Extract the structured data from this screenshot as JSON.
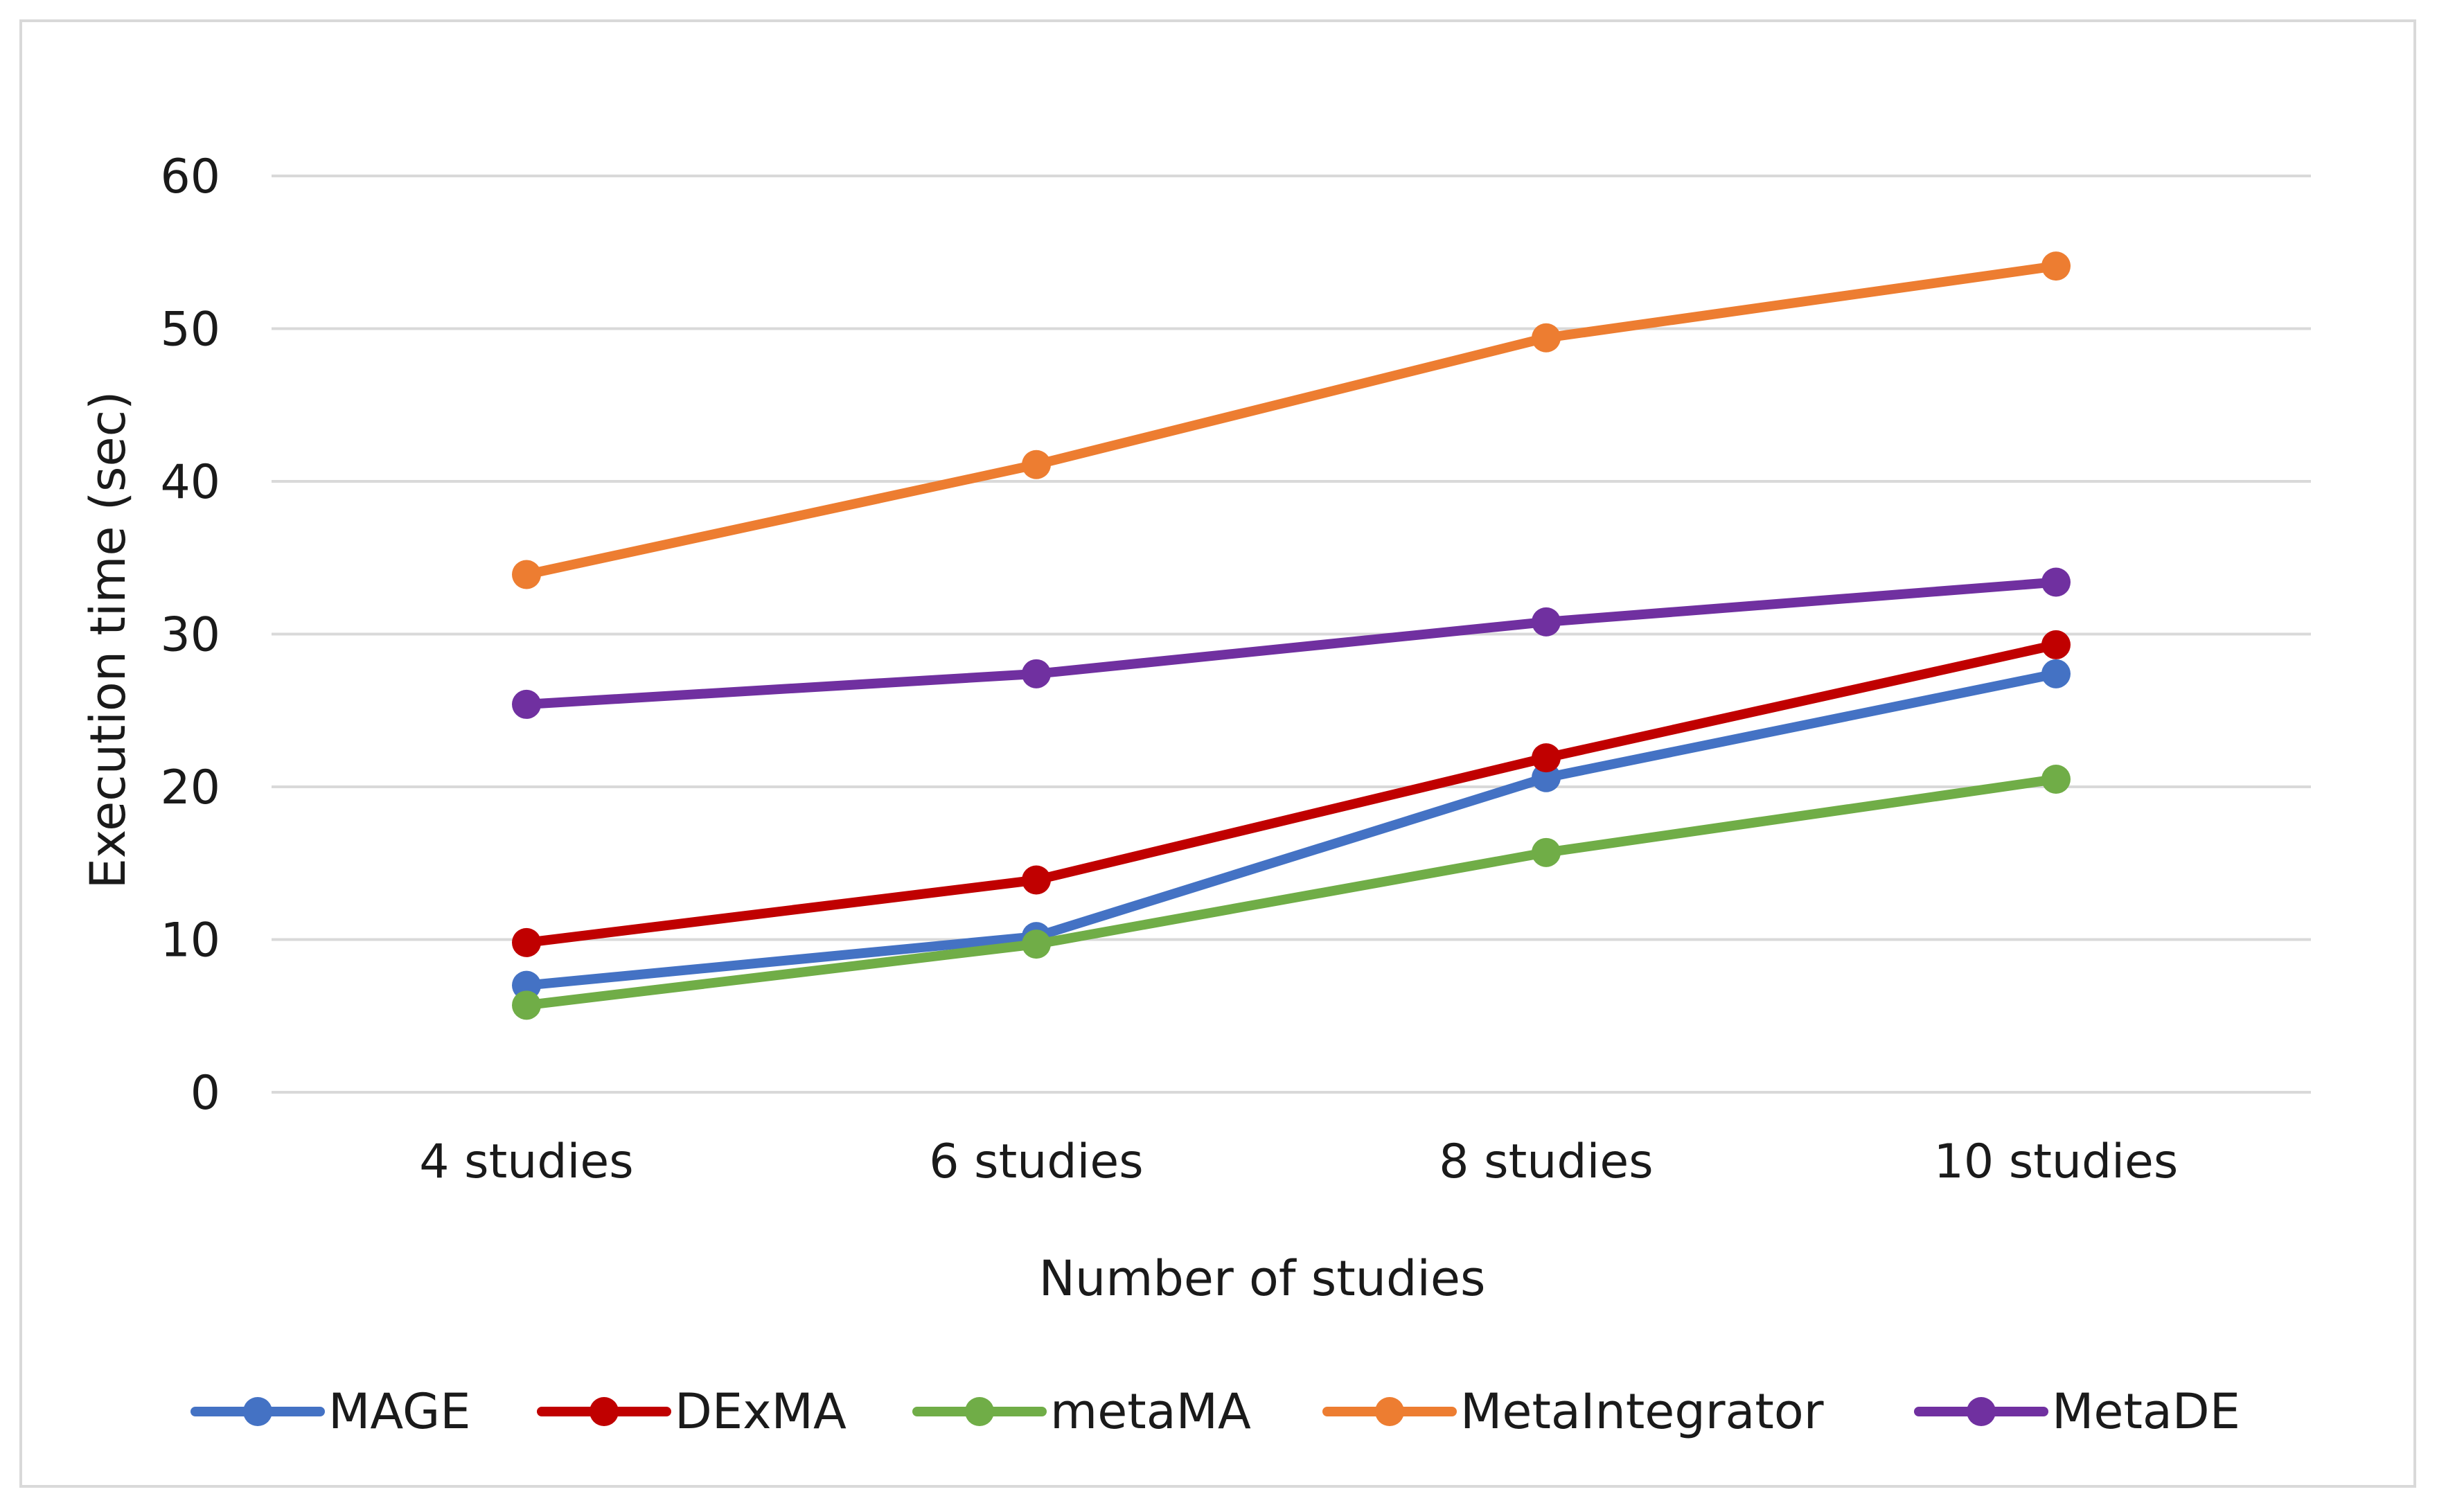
{
  "chart_data": {
    "type": "line",
    "title": "",
    "xlabel": "Number of studies",
    "ylabel": "Execution time (sec)",
    "categories": [
      "4 studies",
      "6 studies",
      "8 studies",
      "10 studies"
    ],
    "ylim": [
      0,
      60
    ],
    "yticks": [
      0,
      10,
      20,
      30,
      40,
      50,
      60
    ],
    "grid": true,
    "legend_position": "bottom",
    "series": [
      {
        "name": "MAGE",
        "color": "#4472c4",
        "values": [
          7.0,
          10.2,
          20.6,
          27.4
        ]
      },
      {
        "name": "DExMA",
        "color": "#c00000",
        "values": [
          9.8,
          13.9,
          21.9,
          29.3
        ]
      },
      {
        "name": "metaMA",
        "color": "#70ad47",
        "values": [
          5.7,
          9.7,
          15.7,
          20.5
        ]
      },
      {
        "name": "MetaIntegrator",
        "color": "#ed7d31",
        "values": [
          33.9,
          41.1,
          49.4,
          54.1
        ]
      },
      {
        "name": "MetaDE",
        "color": "#7030a0",
        "values": [
          25.4,
          27.4,
          30.8,
          33.4
        ]
      }
    ]
  }
}
